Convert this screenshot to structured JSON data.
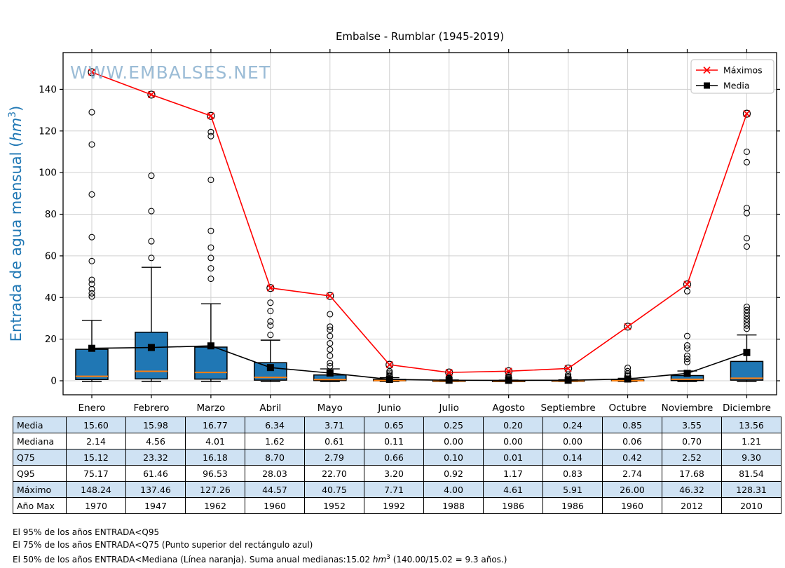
{
  "title": "Embalse - Rumblar (1945-2019)",
  "watermark": "WWW.EMBALSES.NET",
  "ylabel": {
    "prefix": "Entrada de agua mensual (",
    "unit": "hm",
    "sup": "3",
    "suffix": ")"
  },
  "colors": {
    "box_fill": "#2077b4",
    "box_edge": "#000000",
    "median_line": "#ff7f0e",
    "maximos_line": "#ff0000",
    "media_line": "#000000",
    "ylabel_blue": "#1f77b4",
    "watermark_blue": "#7aa6c9",
    "grid": "#d0d0d0",
    "table_alt_row": "#cfe2f3",
    "legend_border": "#cccccc"
  },
  "chart_data": {
    "type": "box",
    "title": "Embalse - Rumblar (1945-2019)",
    "ylabel_text": "Entrada de agua mensual (hm3)",
    "grid": true,
    "legend_position": "upper right",
    "ylim": [
      -7,
      158
    ],
    "yticks": [
      0,
      20,
      40,
      60,
      80,
      100,
      120,
      140
    ],
    "categories": [
      "Enero",
      "Febrero",
      "Marzo",
      "Abril",
      "Mayo",
      "Junio",
      "Julio",
      "Agosto",
      "Septiembre",
      "Octubre",
      "Noviembre",
      "Diciembre"
    ],
    "series": [
      {
        "name": "Máximos",
        "marker": "x",
        "color": "#ff0000",
        "values": [
          148.24,
          137.46,
          127.26,
          44.57,
          40.75,
          7.71,
          4.0,
          4.61,
          5.91,
          26.0,
          46.32,
          128.31
        ]
      },
      {
        "name": "Media",
        "marker": "square",
        "color": "#000000",
        "values": [
          15.6,
          15.98,
          16.77,
          6.34,
          3.71,
          0.65,
          0.25,
          0.2,
          0.24,
          0.85,
          3.55,
          13.56
        ]
      }
    ],
    "boxplots": [
      {
        "month": "Enero",
        "q25": 0.6,
        "median": 2.14,
        "q75": 15.12,
        "whisker_low": 0,
        "whisker_high": 29,
        "outliers": [
          129,
          113.5,
          89.5,
          69,
          57.5,
          48.5,
          46.5,
          44,
          42,
          40.5
        ]
      },
      {
        "month": "Febrero",
        "q25": 0.9,
        "median": 4.56,
        "q75": 23.32,
        "whisker_low": 0,
        "whisker_high": 54.5,
        "outliers": [
          98.5,
          81.5,
          67,
          59
        ]
      },
      {
        "month": "Marzo",
        "q25": 0.8,
        "median": 4.01,
        "q75": 16.18,
        "whisker_low": 0,
        "whisker_high": 37,
        "outliers": [
          119.5,
          117.5,
          96.5,
          72,
          64,
          59,
          54,
          49
        ]
      },
      {
        "month": "Abril",
        "q25": 0.3,
        "median": 1.62,
        "q75": 8.7,
        "whisker_low": 0,
        "whisker_high": 19.5,
        "outliers": [
          37.5,
          33.5,
          28.5,
          26.5,
          22
        ]
      },
      {
        "month": "Mayo",
        "q25": 0.1,
        "median": 0.61,
        "q75": 2.79,
        "whisker_low": 0,
        "whisker_high": 5.7,
        "outliers": [
          32,
          26,
          24.5,
          21.5,
          18,
          15,
          12,
          8.5,
          7
        ]
      },
      {
        "month": "Junio",
        "q25": 0,
        "median": 0.11,
        "q75": 0.66,
        "whisker_low": 0,
        "whisker_high": 1.5,
        "outliers": [
          1.8,
          2.4,
          3.0,
          3.8,
          4.6
        ]
      },
      {
        "month": "Julio",
        "q25": 0,
        "median": 0.0,
        "q75": 0.1,
        "whisker_low": 0,
        "whisker_high": 0.4,
        "outliers": [
          0.8,
          1.3,
          1.8,
          2.4
        ]
      },
      {
        "month": "Agosto",
        "q25": 0,
        "median": 0.0,
        "q75": 0.01,
        "whisker_low": 0,
        "whisker_high": 0.3,
        "outliers": [
          0.9,
          1.4,
          2.0,
          2.6
        ]
      },
      {
        "month": "Septiembre",
        "q25": 0,
        "median": 0.0,
        "q75": 0.14,
        "whisker_low": 0,
        "whisker_high": 0.5,
        "outliers": [
          1.0,
          1.6,
          2.2,
          2.9
        ]
      },
      {
        "month": "Octubre",
        "q25": 0,
        "median": 0.06,
        "q75": 0.42,
        "whisker_low": 0,
        "whisker_high": 1.2,
        "outliers": [
          2.2,
          2.8,
          3.5,
          4.6,
          6.2
        ]
      },
      {
        "month": "Noviembre",
        "q25": 0.1,
        "median": 0.7,
        "q75": 2.52,
        "whisker_low": 0,
        "whisker_high": 4.7,
        "outliers": [
          43,
          21.5,
          17,
          15.5,
          12,
          10.5,
          9
        ]
      },
      {
        "month": "Diciembre",
        "q25": 0.3,
        "median": 1.21,
        "q75": 9.3,
        "whisker_low": 0,
        "whisker_high": 22,
        "outliers": [
          110,
          105,
          83,
          80.5,
          68.5,
          64.5,
          35.5,
          34,
          32.5,
          31,
          29.5,
          28,
          26.5,
          25
        ]
      }
    ]
  },
  "table": {
    "rows": [
      {
        "label": "Media",
        "values": [
          "15.60",
          "15.98",
          "16.77",
          "6.34",
          "3.71",
          "0.65",
          "0.25",
          "0.20",
          "0.24",
          "0.85",
          "3.55",
          "13.56"
        ]
      },
      {
        "label": "Mediana",
        "values": [
          "2.14",
          "4.56",
          "4.01",
          "1.62",
          "0.61",
          "0.11",
          "0.00",
          "0.00",
          "0.00",
          "0.06",
          "0.70",
          "1.21"
        ]
      },
      {
        "label": "Q75",
        "values": [
          "15.12",
          "23.32",
          "16.18",
          "8.70",
          "2.79",
          "0.66",
          "0.10",
          "0.01",
          "0.14",
          "0.42",
          "2.52",
          "9.30"
        ]
      },
      {
        "label": "Q95",
        "values": [
          "75.17",
          "61.46",
          "96.53",
          "28.03",
          "22.70",
          "3.20",
          "0.92",
          "1.17",
          "0.83",
          "2.74",
          "17.68",
          "81.54"
        ]
      },
      {
        "label": "Máximo",
        "values": [
          "148.24",
          "137.46",
          "127.26",
          "44.57",
          "40.75",
          "7.71",
          "4.00",
          "4.61",
          "5.91",
          "26.00",
          "46.32",
          "128.31"
        ]
      },
      {
        "label": "Año Max",
        "values": [
          "1970",
          "1947",
          "1962",
          "1960",
          "1952",
          "1992",
          "1988",
          "1986",
          "1986",
          "1960",
          "2012",
          "2010"
        ]
      }
    ]
  },
  "footnotes": [
    {
      "text": "El 95% de los años ENTRADA<Q95"
    },
    {
      "text": "El 75% de los años ENTRADA<Q75 (Punto superior del rectángulo azul)"
    },
    {
      "prefix": "El 50% de los años ENTRADA<Mediana (Línea naranja). Suma anual medianas:15.02 ",
      "unit": "hm",
      "sup": "3",
      "suffix": " (140.00/15.02 = 9.3 años.)"
    }
  ]
}
